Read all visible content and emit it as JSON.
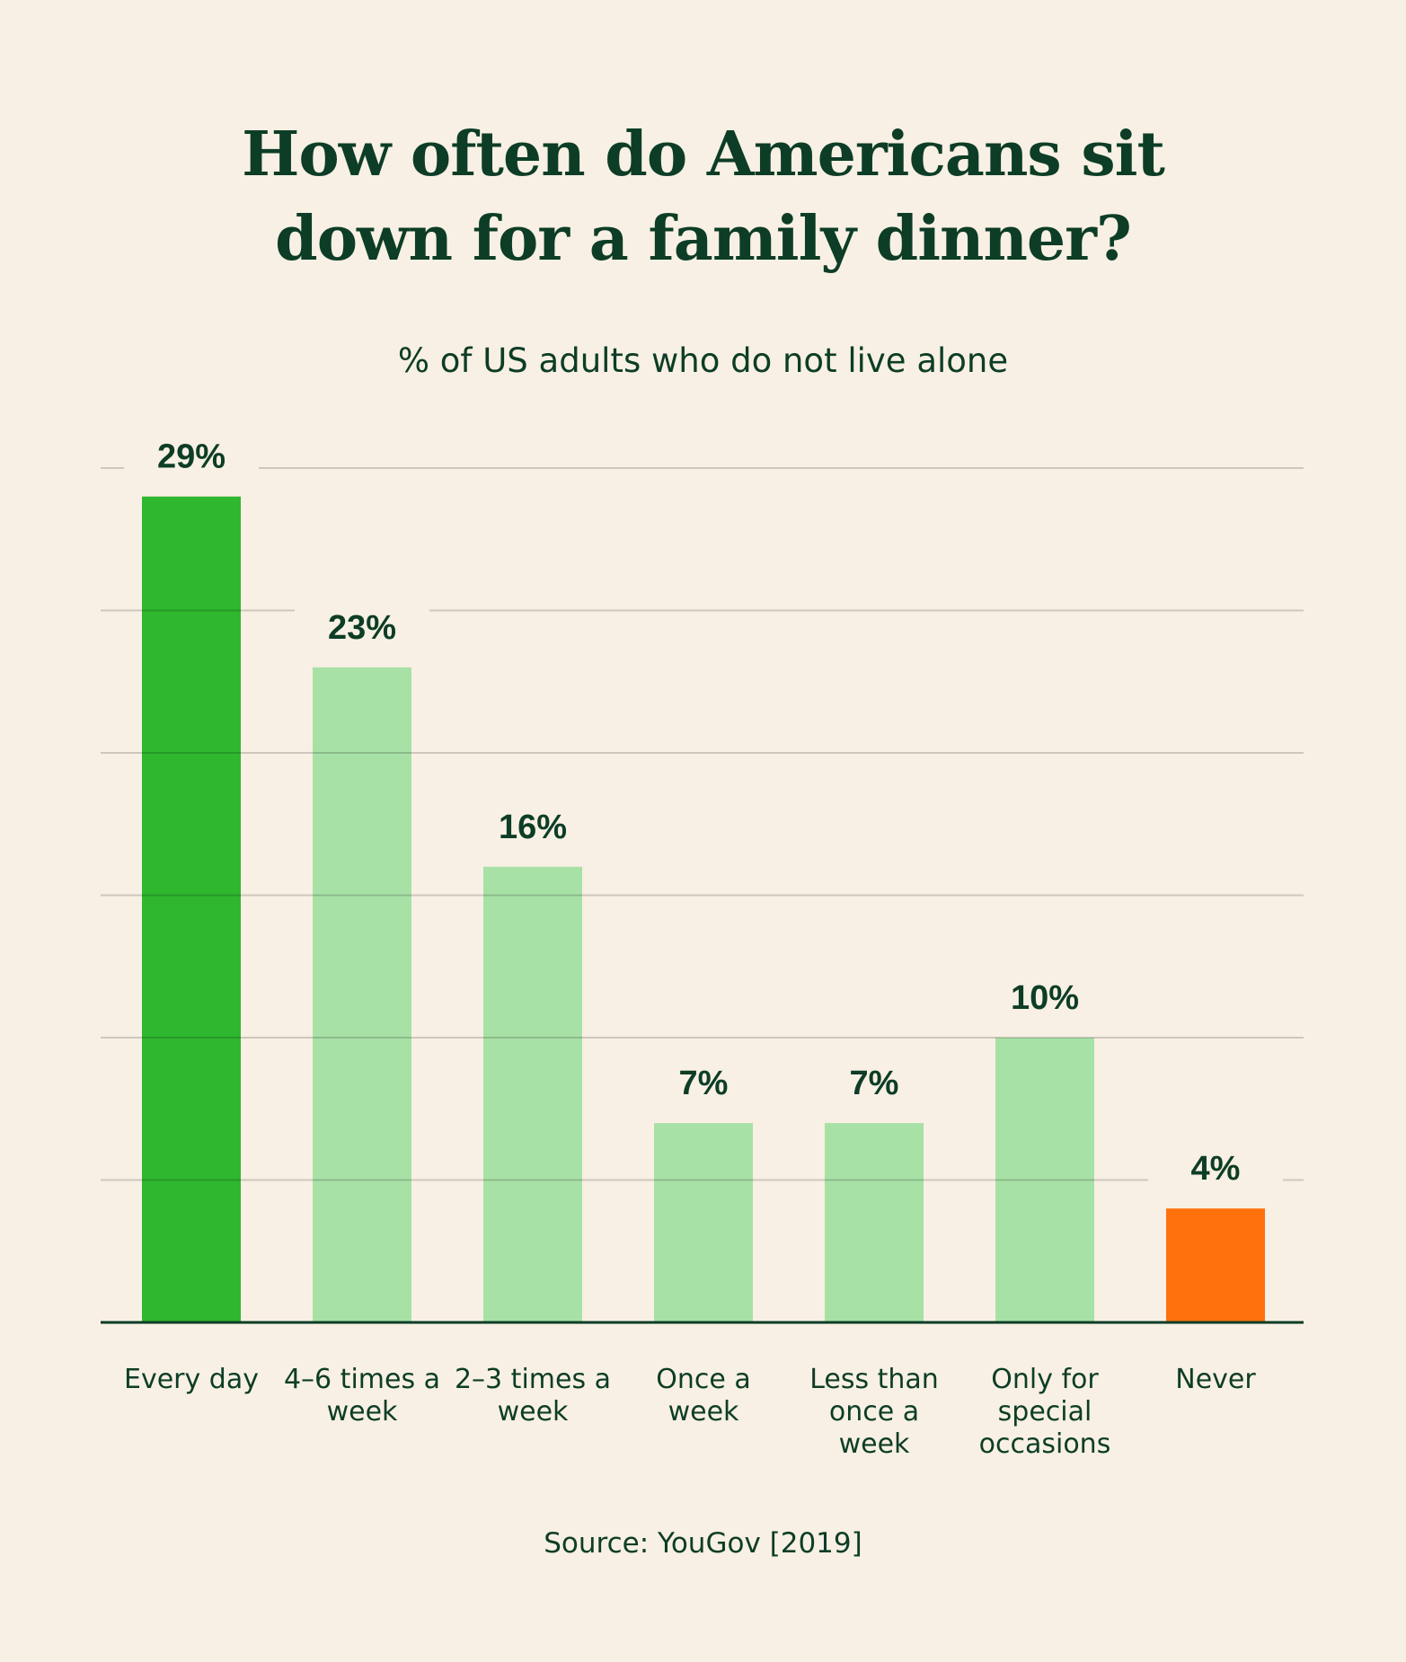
{
  "chart_data": {
    "type": "bar",
    "title": "How often do Americans sit down for a family dinner?",
    "subtitle": "% of US adults who do not live alone",
    "categories": [
      "Every day",
      "4–6 times a week",
      "2–3 times a week",
      "Once a week",
      "Less than once a week",
      "Only for special occasions",
      "Never"
    ],
    "values": [
      29,
      23,
      16,
      7,
      7,
      10,
      4
    ],
    "value_labels": [
      "29%",
      "23%",
      "16%",
      "7%",
      "7%",
      "10%",
      "4%"
    ],
    "colors": [
      "#2fb72f",
      "#a8e1a6",
      "#a8e1a6",
      "#a8e1a6",
      "#a8e1a6",
      "#a8e1a6",
      "#ff710d"
    ],
    "ylim": [
      0,
      30
    ],
    "yticks": [
      0,
      5,
      10,
      15,
      20,
      25,
      30
    ],
    "grid": true,
    "source": "Source: YouGov [2019]"
  }
}
